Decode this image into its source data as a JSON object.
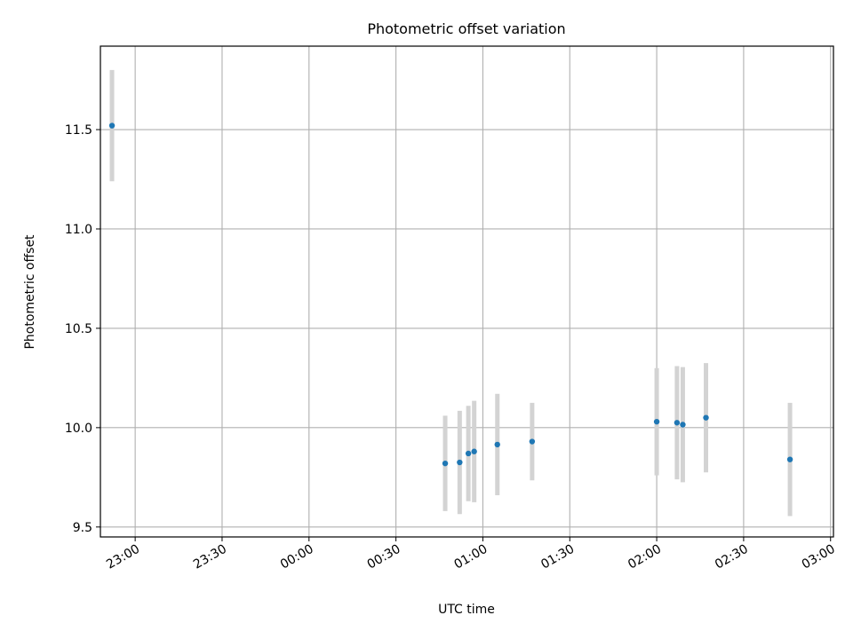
{
  "chart_data": {
    "type": "scatter",
    "title": "Photometric offset variation",
    "xlabel": "UTC time",
    "ylabel": "Photometric offset",
    "x_axis": {
      "type": "time",
      "range": [
        "22:48",
        "03:01"
      ],
      "ticks": [
        "23:00",
        "23:30",
        "00:00",
        "00:30",
        "01:00",
        "01:30",
        "02:00",
        "02:30",
        "03:00"
      ],
      "tick_label_rotation": -30
    },
    "y_axis": {
      "range": [
        9.45,
        11.92
      ],
      "ticks": [
        9.5,
        10.0,
        10.5,
        11.0,
        11.5
      ],
      "tick_labels": [
        "9.5",
        "10.0",
        "10.5",
        "11.0",
        "11.5"
      ]
    },
    "grid": true,
    "colors": {
      "points": "#1f77b4",
      "error_bars": "#d3d3d3",
      "grid": "#b0b0b0",
      "axes": "#000000"
    },
    "points": [
      {
        "x": "22:52",
        "y": 11.52,
        "err": 0.28
      },
      {
        "x": "00:47",
        "y": 9.82,
        "err": 0.24
      },
      {
        "x": "00:52",
        "y": 9.825,
        "err": 0.26
      },
      {
        "x": "00:55",
        "y": 9.87,
        "err": 0.24
      },
      {
        "x": "00:57",
        "y": 9.88,
        "err": 0.255
      },
      {
        "x": "01:05",
        "y": 9.915,
        "err": 0.255
      },
      {
        "x": "01:17",
        "y": 9.93,
        "err": 0.195
      },
      {
        "x": "02:00",
        "y": 10.03,
        "err": 0.27
      },
      {
        "x": "02:07",
        "y": 10.025,
        "err": 0.285
      },
      {
        "x": "02:09",
        "y": 10.015,
        "err": 0.29
      },
      {
        "x": "02:17",
        "y": 10.05,
        "err": 0.275
      },
      {
        "x": "02:46",
        "y": 9.84,
        "err": 0.285
      }
    ]
  }
}
